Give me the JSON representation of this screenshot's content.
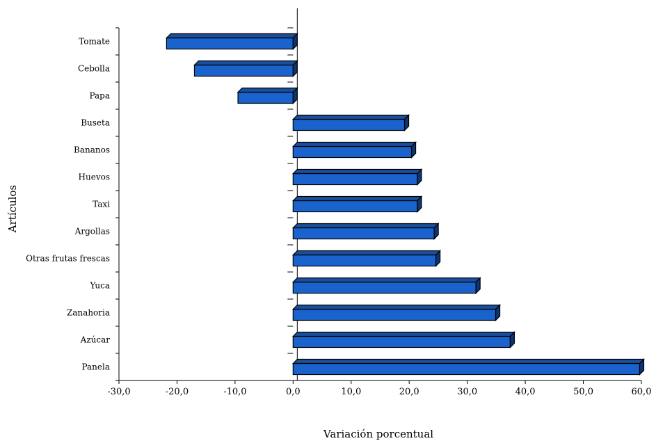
{
  "chart_data": {
    "type": "bar",
    "orientation": "horizontal",
    "style": "3d",
    "title": "",
    "xlabel": "Variación porcentual",
    "ylabel": "Artículos",
    "xlim": [
      -30,
      60
    ],
    "xticks": [
      "-30,0",
      "-20,0",
      "-10,0",
      "0,0",
      "10,0",
      "20,0",
      "30,0",
      "40,0",
      "50,0",
      "60,0"
    ],
    "categories": [
      "Tomate",
      "Cebolla",
      "Papa",
      "Buseta",
      "Bananos",
      "Huevos",
      "Taxi",
      "Argollas",
      "Otras frutas frescas",
      "Yuca",
      "Zanahoria",
      "Azúcar",
      "Panela"
    ],
    "values": [
      -21.8,
      -17.0,
      -9.5,
      19.2,
      20.4,
      21.4,
      21.4,
      24.3,
      24.6,
      31.5,
      34.9,
      37.4,
      59.7
    ],
    "bar_color": "#1b63cc",
    "bar_top_color": "#1a4f9e",
    "bar_side_color": "#0f3470",
    "grid": false,
    "legend": "none"
  }
}
